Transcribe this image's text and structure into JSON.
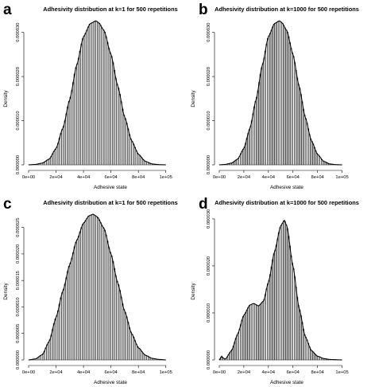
{
  "chart_data": [
    {
      "panel": "a",
      "type": "bar",
      "title": "Adhesivity distribution at k=1 for 500 repetitions",
      "xlabel": "Adhesive state",
      "ylabel": "Density",
      "xlim": [
        0,
        110000
      ],
      "ylim": [
        0,
        3.3e-05
      ],
      "x_ticks": [
        0,
        20000,
        40000,
        60000,
        80000,
        100000
      ],
      "x_tick_labels": [
        "0e+00",
        "2e+04",
        "4e+04",
        "6e+04",
        "8e+04",
        "1e+05"
      ],
      "y_ticks": [
        0,
        1e-05,
        2e-05,
        3e-05
      ],
      "y_tick_labels": [
        "0.000000",
        "0.000010",
        "0.000020",
        "0.000030"
      ],
      "bin_width": 1000,
      "curve_x": [
        0,
        5000,
        10000,
        15000,
        20000,
        25000,
        30000,
        35000,
        40000,
        45000,
        49000,
        51000,
        55000,
        60000,
        65000,
        70000,
        75000,
        80000,
        85000,
        90000,
        95000,
        100000
      ],
      "curve_y": [
        0,
        1e-07,
        4e-07,
        1.3e-06,
        3.7e-06,
        8.3e-06,
        1.48e-05,
        2.25e-05,
        2.9e-05,
        3.2e-05,
        3.26e-05,
        3.22e-05,
        3.04e-05,
        2.5e-05,
        1.78e-05,
        1.08e-05,
        5.5e-06,
        2.4e-06,
        8e-07,
        2e-07,
        5e-08,
        0
      ]
    },
    {
      "panel": "b",
      "type": "bar",
      "title": "Adhesivity distribution at k=1000 for 500 repetitions",
      "xlabel": "Adhesive state",
      "ylabel": "Density",
      "xlim": [
        0,
        110000
      ],
      "ylim": [
        0,
        3.3e-05
      ],
      "x_ticks": [
        0,
        20000,
        40000,
        60000,
        80000,
        100000
      ],
      "x_tick_labels": [
        "0e+00",
        "2e+04",
        "4e+04",
        "6e+04",
        "8e+04",
        "1e+05"
      ],
      "y_ticks": [
        0,
        1e-05,
        2e-05,
        3e-05
      ],
      "y_tick_labels": [
        "0.000000",
        "0.000010",
        "0.000020",
        "0.000030"
      ],
      "bin_width": 1000,
      "curve_x": [
        0,
        5000,
        10000,
        15000,
        20000,
        25000,
        30000,
        35000,
        40000,
        45000,
        49000,
        51000,
        55000,
        60000,
        65000,
        70000,
        75000,
        80000,
        85000,
        90000,
        95000,
        100000
      ],
      "curve_y": [
        0,
        1e-07,
        4e-07,
        1.3e-06,
        3.7e-06,
        8.3e-06,
        1.48e-05,
        2.25e-05,
        2.9e-05,
        3.2e-05,
        3.26e-05,
        3.22e-05,
        3.04e-05,
        2.5e-05,
        1.78e-05,
        1.08e-05,
        5.5e-06,
        2.4e-06,
        8e-07,
        2e-07,
        5e-08,
        0
      ]
    },
    {
      "panel": "c",
      "type": "bar",
      "title": "Adhesivity distribution at k=1 for 500 repetitions",
      "xlabel": "Adhesive state",
      "ylabel": "Density",
      "xlim": [
        0,
        110000
      ],
      "ylim": [
        0,
        2.75e-05
      ],
      "x_ticks": [
        0,
        20000,
        40000,
        60000,
        80000,
        100000
      ],
      "x_tick_labels": [
        "0e+00",
        "2e+04",
        "4e+04",
        "6e+04",
        "8e+04",
        "1e+05"
      ],
      "y_ticks": [
        0,
        5e-06,
        1e-05,
        1.5e-05,
        2e-05,
        2.5e-05
      ],
      "y_tick_labels": [
        "0.000000",
        "0.000005",
        "0.000010",
        "0.000015",
        "0.000020",
        "0.000025"
      ],
      "bin_width": 1000,
      "curve_x": [
        0,
        5000,
        10000,
        15000,
        20000,
        25000,
        30000,
        35000,
        40000,
        44000,
        47000,
        50000,
        55000,
        60000,
        65000,
        70000,
        75000,
        80000,
        85000,
        90000,
        95000,
        100000
      ],
      "curve_y": [
        0,
        2e-07,
        1e-06,
        3.5e-06,
        8e-06,
        1.3e-05,
        1.8e-05,
        2.25e-05,
        2.58e-05,
        2.72e-05,
        2.75e-05,
        2.7e-05,
        2.48e-05,
        2e-05,
        1.45e-05,
        9.2e-06,
        5e-06,
        2.3e-06,
        9e-07,
        3e-07,
        1e-07,
        0
      ]
    },
    {
      "panel": "d",
      "type": "bar",
      "title": "Adhesivity distribution at k=1000 for 500 repetitions",
      "xlabel": "Adhesive state",
      "ylabel": "Density",
      "xlim": [
        0,
        110000
      ],
      "ylim": [
        0,
        3.1e-05
      ],
      "x_ticks": [
        0,
        20000,
        40000,
        60000,
        80000,
        100000
      ],
      "x_tick_labels": [
        "0e+00",
        "2e+04",
        "4e+04",
        "6e+04",
        "8e+04",
        "1e+05"
      ],
      "y_ticks": [
        0,
        1e-05,
        2e-05,
        3e-05
      ],
      "y_tick_labels": [
        "0.000000",
        "0.000010",
        "0.000020",
        "0.000030"
      ],
      "bin_width": 1000,
      "curve_x": [
        0,
        1000,
        2000,
        3000,
        5000,
        10000,
        15000,
        20000,
        25000,
        28000,
        32000,
        36000,
        40000,
        45000,
        50000,
        53000,
        55000,
        60000,
        65000,
        70000,
        75000,
        80000,
        85000,
        90000,
        100000
      ],
      "curve_y": [
        0,
        4e-07,
        8e-07,
        4e-07,
        2e-07,
        2e-06,
        5.5e-06,
        9.5e-06,
        1.17e-05,
        1.2e-05,
        1.15e-05,
        1.25e-05,
        1.65e-05,
        2.3e-05,
        2.85e-05,
        2.97e-05,
        2.85e-05,
        2e-05,
        1.1e-05,
        5e-06,
        2e-06,
        8e-07,
        3e-07,
        1e-07,
        0
      ]
    }
  ]
}
